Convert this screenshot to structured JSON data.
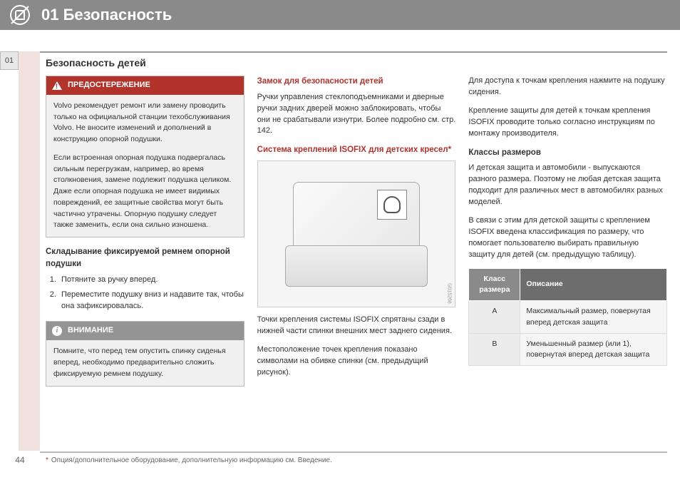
{
  "header": {
    "chapter_num": "01",
    "chapter_title": "Безопасность"
  },
  "tab": "01",
  "subtitle": "Безопасность детей",
  "col1": {
    "warning": {
      "label": "ПРЕДОСТЕРЕЖЕНИЕ",
      "p1": "Volvo рекомендует ремонт или замену проводить только на официальной станции техобслуживания Volvo. Не вносите изменений и дополнений в конструкцию опорной подушки.",
      "p2": "Если встроенная опорная подушка подвергалась сильным перегрузкам, например, во время столкновения, замене подлежит подушка целиком. Даже если опорная подушка не имеет видимых повреждений, ее защитные свойства могут быть частично утрачены. Опорную подушку следует также заменить, если она сильно изношена."
    },
    "h3": "Складывание фиксируемой ремнем опорной подушки",
    "li1": "Потяните за ручку вперед.",
    "li2": "Переместите подушку вниз и надавите так, чтобы она зафиксировалась.",
    "note": {
      "label": "ВНИМАНИЕ",
      "p1": "Помните, что перед тем опустить спинку сиденья вперед, необходимо предварительно сложить фиксируемую ремнем подушку."
    }
  },
  "col2": {
    "h3a": "Замок для безопасности детей",
    "p1": "Ручки управления стеклоподъемниками и дверные ручки задних дверей можно заблокировать, чтобы они не срабатывали изнутри. Более подробно см. стр. 142.",
    "h3b": "Система креплений ISOFIX для детских кресел",
    "img_code": "G015268",
    "p2": "Точки крепления системы ISOFIX спрятаны сзади в нижней части спинки внешних мест заднего сидения.",
    "p3": "Местоположение точек крепления показано символами на обивке спинки (см. предыдущий рисунок)."
  },
  "col3": {
    "p1": "Для доступа к точкам крепления нажмите на подушку сидения.",
    "p2": "Крепление защиты для детей к точкам крепления ISOFIX проводите только согласно инструкциям по монтажу производителя.",
    "h3": "Классы размеров",
    "p3": "И детская защита и автомобили - выпускаются разного размера. Поэтому не любая детская защита подходит для различных мест в автомобилях разных моделей.",
    "p4": "В связи с этим для детской защиты с креплением ISOFIX введена классификация по размеру, что помогает пользователю выбирать правильную защиту для детей (см. предыдущую таблицу).",
    "table": {
      "th1": "Класс размера",
      "th2": "Описание",
      "r1c1": "A",
      "r1c2": "Максимальный размер, повернутая вперед детская защита",
      "r2c1": "B",
      "r2c2": "Уменьшенный размер (или 1), повернутая вперед детская защита"
    }
  },
  "footer": {
    "page": "44",
    "text": "Опция/дополнительное оборудование, дополнительную информацию см. Введение."
  }
}
